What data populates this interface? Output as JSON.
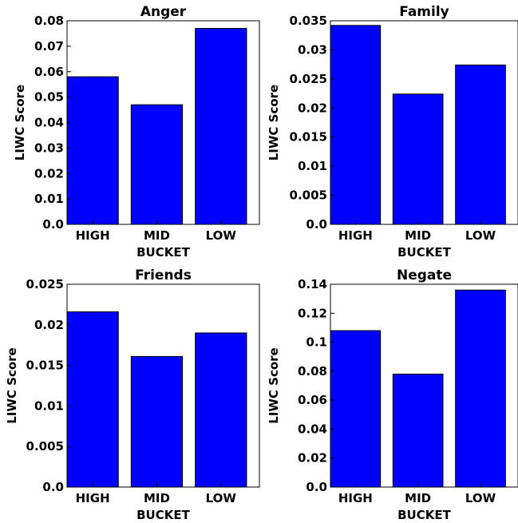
{
  "chart_data": [
    {
      "type": "bar",
      "title": "Anger",
      "xlabel": "BUCKET",
      "ylabel": "LIWC Score",
      "categories": [
        "HIGH",
        "MID",
        "LOW"
      ],
      "values": [
        0.058,
        0.047,
        0.077
      ],
      "ylim": [
        0,
        0.08
      ],
      "yticks": [
        "0.0",
        "0.01",
        "0.02",
        "0.03",
        "0.04",
        "0.05",
        "0.06",
        "0.07",
        "0.08"
      ],
      "bar_color": "#0000ff",
      "grid": false
    },
    {
      "type": "bar",
      "title": "Family",
      "xlabel": "BUCKET",
      "ylabel": "LIWC Score",
      "categories": [
        "HIGH",
        "MID",
        "LOW"
      ],
      "values": [
        0.0342,
        0.0224,
        0.0274
      ],
      "ylim": [
        0,
        0.035
      ],
      "yticks": [
        "0.0",
        "0.005",
        "0.01",
        "0.015",
        "0.02",
        "0.025",
        "0.03",
        "0.035"
      ],
      "bar_color": "#0000ff",
      "grid": false
    },
    {
      "type": "bar",
      "title": "Friends",
      "xlabel": "BUCKET",
      "ylabel": "LIWC Score",
      "categories": [
        "HIGH",
        "MID",
        "LOW"
      ],
      "values": [
        0.0216,
        0.0161,
        0.019
      ],
      "ylim": [
        0,
        0.025
      ],
      "yticks": [
        "0.0",
        "0.005",
        "0.01",
        "0.015",
        "0.02",
        "0.025"
      ],
      "bar_color": "#0000ff",
      "grid": false
    },
    {
      "type": "bar",
      "title": "Negate",
      "xlabel": "BUCKET",
      "ylabel": "LIWC Score",
      "categories": [
        "HIGH",
        "MID",
        "LOW"
      ],
      "values": [
        0.108,
        0.078,
        0.136
      ],
      "ylim": [
        0,
        0.14
      ],
      "yticks": [
        "0.0",
        "0.02",
        "0.04",
        "0.06",
        "0.08",
        "0.1",
        "0.12",
        "0.14"
      ],
      "bar_color": "#0000ff",
      "grid": false
    }
  ]
}
